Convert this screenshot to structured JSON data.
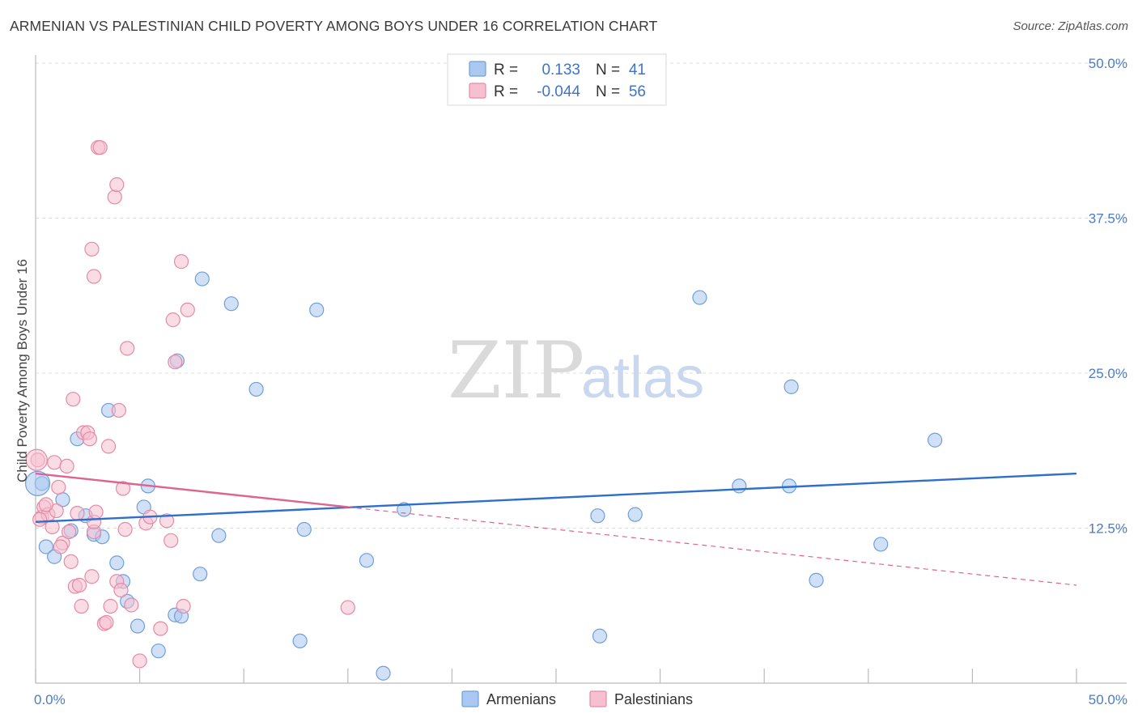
{
  "header": {
    "title": "ARMENIAN VS PALESTINIAN CHILD POVERTY AMONG BOYS UNDER 16 CORRELATION CHART",
    "source": "Source: ZipAtlas.com"
  },
  "watermark": {
    "zip": "ZIP",
    "atlas": "atlas"
  },
  "legend": {
    "rows": [
      {
        "r_label": "R =",
        "r_value": "0.133",
        "n_label": "N =",
        "n_value": "41",
        "color": "#aac8f0",
        "border": "#6f9fdc"
      },
      {
        "r_label": "R =",
        "r_value": "-0.044",
        "n_label": "N =",
        "n_value": "56",
        "color": "#f6c0d0",
        "border": "#e58aa5"
      }
    ]
  },
  "chart_data": {
    "type": "scatter",
    "title": "ARMENIAN VS PALESTINIAN CHILD POVERTY AMONG BOYS UNDER 16 CORRELATION CHART",
    "xlabel": "",
    "ylabel": "Child Poverty Among Boys Under 16",
    "xlim": [
      0,
      50
    ],
    "ylim": [
      0,
      50
    ],
    "x_tick_labels": [
      "0.0%",
      "50.0%"
    ],
    "y_ticks": [
      12.5,
      25,
      37.5,
      50
    ],
    "y_tick_labels": [
      "12.5%",
      "25.0%",
      "37.5%",
      "50.0%"
    ],
    "grid": true,
    "legend_position": "top-center",
    "series": [
      {
        "name": "Armenians",
        "color": "#aac8f0",
        "border": "#6f9fdc",
        "line_color": "#2e6fcc",
        "trend": {
          "x0": 0,
          "y0": 13.0,
          "x1": 50,
          "y1": 16.9
        },
        "points": [
          [
            0.3,
            16.1
          ],
          [
            0.5,
            11.0
          ],
          [
            0.9,
            10.2
          ],
          [
            1.3,
            14.8
          ],
          [
            1.7,
            12.3
          ],
          [
            2.0,
            19.7
          ],
          [
            2.4,
            13.5
          ],
          [
            2.8,
            12.0
          ],
          [
            3.2,
            11.8
          ],
          [
            3.5,
            22.0
          ],
          [
            3.9,
            9.7
          ],
          [
            4.2,
            8.2
          ],
          [
            4.4,
            6.6
          ],
          [
            4.9,
            4.6
          ],
          [
            5.2,
            14.2
          ],
          [
            5.4,
            15.9
          ],
          [
            5.9,
            2.6
          ],
          [
            6.7,
            5.5
          ],
          [
            6.8,
            26.0
          ],
          [
            7.0,
            5.4
          ],
          [
            7.9,
            8.8
          ],
          [
            8.0,
            32.6
          ],
          [
            8.8,
            11.9
          ],
          [
            9.4,
            30.6
          ],
          [
            10.6,
            23.7
          ],
          [
            12.7,
            3.4
          ],
          [
            12.9,
            12.4
          ],
          [
            13.5,
            30.1
          ],
          [
            15.9,
            9.9
          ],
          [
            16.7,
            0.8
          ],
          [
            17.7,
            14.0
          ],
          [
            27.0,
            13.5
          ],
          [
            28.8,
            13.6
          ],
          [
            27.1,
            3.8
          ],
          [
            31.9,
            31.1
          ],
          [
            33.8,
            15.9
          ],
          [
            36.2,
            15.9
          ],
          [
            36.3,
            23.9
          ],
          [
            37.5,
            8.3
          ],
          [
            40.6,
            11.2
          ],
          [
            43.2,
            19.6
          ]
        ]
      },
      {
        "name": "Palestinians",
        "color": "#f6c0d0",
        "border": "#e58aa5",
        "line_color": "#e0628f",
        "trend": {
          "x0": 0,
          "y0": 16.9,
          "x1": 15,
          "y1": 14.2
        },
        "trend_extension": {
          "x0": 15,
          "y0": 14.2,
          "x1": 50,
          "y1": 7.9
        },
        "points": [
          [
            0.1,
            18.0
          ],
          [
            0.3,
            13.4
          ],
          [
            0.4,
            14.2
          ],
          [
            0.6,
            13.6
          ],
          [
            0.8,
            12.6
          ],
          [
            0.9,
            17.8
          ],
          [
            1.0,
            13.9
          ],
          [
            1.1,
            15.8
          ],
          [
            1.3,
            11.3
          ],
          [
            1.5,
            17.5
          ],
          [
            1.6,
            12.2
          ],
          [
            1.7,
            9.8
          ],
          [
            1.8,
            22.9
          ],
          [
            1.9,
            7.8
          ],
          [
            2.0,
            13.7
          ],
          [
            2.1,
            7.9
          ],
          [
            2.2,
            6.2
          ],
          [
            2.3,
            20.2
          ],
          [
            2.5,
            20.2
          ],
          [
            2.6,
            19.7
          ],
          [
            2.7,
            8.6
          ],
          [
            2.8,
            12.2
          ],
          [
            2.8,
            13.0
          ],
          [
            2.9,
            13.8
          ],
          [
            2.7,
            35.0
          ],
          [
            2.8,
            32.8
          ],
          [
            3.0,
            43.2
          ],
          [
            3.1,
            43.2
          ],
          [
            3.3,
            4.8
          ],
          [
            3.4,
            4.9
          ],
          [
            3.5,
            19.1
          ],
          [
            3.6,
            6.2
          ],
          [
            3.8,
            39.2
          ],
          [
            3.9,
            40.2
          ],
          [
            3.9,
            8.2
          ],
          [
            4.0,
            22.0
          ],
          [
            4.1,
            7.5
          ],
          [
            4.2,
            15.7
          ],
          [
            4.3,
            12.4
          ],
          [
            4.4,
            27.0
          ],
          [
            4.6,
            6.3
          ],
          [
            5.0,
            1.8
          ],
          [
            5.3,
            12.9
          ],
          [
            5.5,
            13.4
          ],
          [
            6.0,
            4.4
          ],
          [
            6.3,
            13.1
          ],
          [
            6.5,
            11.5
          ],
          [
            6.6,
            29.3
          ],
          [
            6.7,
            25.9
          ],
          [
            7.0,
            34.0
          ],
          [
            7.1,
            6.2
          ],
          [
            7.3,
            30.1
          ],
          [
            15.0,
            6.1
          ],
          [
            0.2,
            13.2
          ],
          [
            0.5,
            14.4
          ],
          [
            1.2,
            11.0
          ]
        ]
      }
    ],
    "bottom_legend": [
      "Armenians",
      "Palestinians"
    ]
  }
}
